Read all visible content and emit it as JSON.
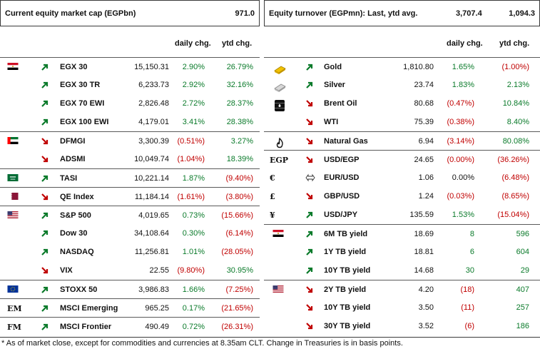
{
  "header_left": {
    "title": "Current equity market cap (EGPbn)",
    "value": "971.0"
  },
  "header_right": {
    "title": "Equity turnover (EGPmn): Last, ytd avg.",
    "last": "3,707.4",
    "avg": "1,094.3"
  },
  "left_cols": {
    "daily": "daily chg.",
    "ytd": "ytd chg."
  },
  "right_cols": {
    "daily": "daily chg.",
    "ytd": "ytd chg."
  },
  "left_rows": [
    {
      "name": "EGX 30",
      "value": "15,150.31",
      "daily": "2.90%",
      "ytd": "26.79%",
      "dir": "up",
      "dc": "pos",
      "yc": "pos",
      "flag": "egypt",
      "sep": true
    },
    {
      "name": "EGX 30 TR",
      "value": "6,233.73",
      "daily": "2.92%",
      "ytd": "32.16%",
      "dir": "up",
      "dc": "pos",
      "yc": "pos",
      "flag": "",
      "sep": false
    },
    {
      "name": "EGX 70 EWI",
      "value": "2,826.48",
      "daily": "2.72%",
      "ytd": "28.37%",
      "dir": "up",
      "dc": "pos",
      "yc": "pos",
      "flag": "",
      "sep": false
    },
    {
      "name": "EGX 100 EWI",
      "value": "4,179.01",
      "daily": "3.41%",
      "ytd": "28.38%",
      "dir": "up",
      "dc": "pos",
      "yc": "pos",
      "flag": "",
      "sep": false
    },
    {
      "name": "DFMGI",
      "value": "3,300.39",
      "daily": "(0.51%)",
      "ytd": "3.27%",
      "dir": "down",
      "dc": "neg",
      "yc": "pos",
      "flag": "uae",
      "sep": true
    },
    {
      "name": "ADSMI",
      "value": "10,049.74",
      "daily": "(1.04%)",
      "ytd": "18.39%",
      "dir": "down",
      "dc": "neg",
      "yc": "pos",
      "flag": "",
      "sep": false
    },
    {
      "name": "TASI",
      "value": "10,221.14",
      "daily": "1.87%",
      "ytd": "(9.40%)",
      "dir": "up",
      "dc": "pos",
      "yc": "neg",
      "flag": "saudi",
      "sep": true
    },
    {
      "name": "QE Index",
      "value": "11,184.14",
      "daily": "(1.61%)",
      "ytd": "(3.80%)",
      "dir": "down",
      "dc": "neg",
      "yc": "neg",
      "flag": "qatar",
      "sep": true
    },
    {
      "name": "S&P 500",
      "value": "4,019.65",
      "daily": "0.73%",
      "ytd": "(15.66%)",
      "dir": "up",
      "dc": "pos",
      "yc": "neg",
      "flag": "usa",
      "sep": true
    },
    {
      "name": "Dow 30",
      "value": "34,108.64",
      "daily": "0.30%",
      "ytd": "(6.14%)",
      "dir": "up",
      "dc": "pos",
      "yc": "neg",
      "flag": "",
      "sep": false
    },
    {
      "name": "NASDAQ",
      "value": "11,256.81",
      "daily": "1.01%",
      "ytd": "(28.05%)",
      "dir": "up",
      "dc": "pos",
      "yc": "neg",
      "flag": "",
      "sep": false
    },
    {
      "name": "VIX",
      "value": "22.55",
      "daily": "(9.80%)",
      "ytd": "30.95%",
      "dir": "down",
      "dc": "neg",
      "yc": "pos",
      "flag": "",
      "sep": false
    },
    {
      "name": "STOXX 50",
      "value": "3,986.83",
      "daily": "1.66%",
      "ytd": "(7.25%)",
      "dir": "up",
      "dc": "pos",
      "yc": "neg",
      "flag": "eu",
      "sep": true
    },
    {
      "name": "MSCI Emerging",
      "value": "965.25",
      "daily": "0.17%",
      "ytd": "(21.65%)",
      "dir": "up",
      "dc": "pos",
      "yc": "neg",
      "label": "EM",
      "sep": true
    },
    {
      "name": "MSCI Frontier",
      "value": "490.49",
      "daily": "0.72%",
      "ytd": "(26.31%)",
      "dir": "up",
      "dc": "pos",
      "yc": "neg",
      "label": "FM",
      "sep": true
    }
  ],
  "right_rows": [
    {
      "name": "Gold",
      "value": "1,810.80",
      "daily": "1.65%",
      "ytd": "(1.00%)",
      "dir": "up",
      "dc": "pos",
      "yc": "neg",
      "icon": "gold",
      "sep": true
    },
    {
      "name": "Silver",
      "value": "23.74",
      "daily": "1.83%",
      "ytd": "2.13%",
      "dir": "up",
      "dc": "pos",
      "yc": "pos",
      "icon": "silver",
      "sep": false
    },
    {
      "name": "Brent Oil",
      "value": "80.68",
      "daily": "(0.47%)",
      "ytd": "10.84%",
      "dir": "down",
      "dc": "neg",
      "yc": "pos",
      "icon": "barrel",
      "sep": false
    },
    {
      "name": "WTI",
      "value": "75.39",
      "daily": "(0.38%)",
      "ytd": "8.40%",
      "dir": "down",
      "dc": "neg",
      "yc": "pos",
      "icon": "",
      "sep": false
    },
    {
      "name": "Natural Gas",
      "value": "6.94",
      "daily": "(3.14%)",
      "ytd": "80.08%",
      "dir": "down",
      "dc": "neg",
      "yc": "pos",
      "icon": "flame",
      "sep": true
    },
    {
      "name": "USD/EGP",
      "value": "24.65",
      "daily": "(0.00%)",
      "ytd": "(36.26%)",
      "dir": "down",
      "dc": "neg",
      "yc": "neg",
      "label": "EGP",
      "sep": true
    },
    {
      "name": "EUR/USD",
      "value": "1.06",
      "daily": "0.00%",
      "ytd": "(6.48%)",
      "dir": "flat",
      "dc": "neu",
      "yc": "neg",
      "label": "€",
      "sep": false
    },
    {
      "name": "GBP/USD",
      "value": "1.24",
      "daily": "(0.03%)",
      "ytd": "(8.65%)",
      "dir": "down",
      "dc": "neg",
      "yc": "neg",
      "label": "£",
      "sep": false
    },
    {
      "name": "USD/JPY",
      "value": "135.59",
      "daily": "1.53%",
      "ytd": "(15.04%)",
      "dir": "up",
      "dc": "pos",
      "yc": "neg",
      "label": "¥",
      "sep": false
    },
    {
      "name": "6M TB yield",
      "value": "18.69",
      "daily": "8",
      "ytd": "596",
      "dir": "up",
      "dc": "pos",
      "yc": "pos",
      "flag": "egypt",
      "sep": true
    },
    {
      "name": "1Y TB yield",
      "value": "18.81",
      "daily": "6",
      "ytd": "604",
      "dir": "up",
      "dc": "pos",
      "yc": "pos",
      "flag": "",
      "sep": false
    },
    {
      "name": "10Y TB yield",
      "value": "14.68",
      "daily": "30",
      "ytd": "29",
      "dir": "up",
      "dc": "pos",
      "yc": "pos",
      "flag": "",
      "sep": false
    },
    {
      "name": "2Y TB yield",
      "value": "4.20",
      "daily": "(18)",
      "ytd": "407",
      "dir": "down",
      "dc": "neg",
      "yc": "pos",
      "flag": "usa",
      "sep": true
    },
    {
      "name": "10Y TB yield",
      "value": "3.50",
      "daily": "(11)",
      "ytd": "257",
      "dir": "down",
      "dc": "neg",
      "yc": "pos",
      "flag": "",
      "sep": false
    },
    {
      "name": "30Y TB yield",
      "value": "3.52",
      "daily": "(6)",
      "ytd": "186",
      "dir": "down",
      "dc": "neg",
      "yc": "pos",
      "flag": "",
      "sep": false
    }
  ],
  "footnote": "* As of market close, except for commodities and currencies at 8.35am CLT. Change in Treasuries is in basis points.",
  "colors": {
    "positive": "#0a7a2a",
    "negative": "#c00000",
    "up_arrow": "#0a7a2a",
    "down_arrow": "#c00000"
  }
}
